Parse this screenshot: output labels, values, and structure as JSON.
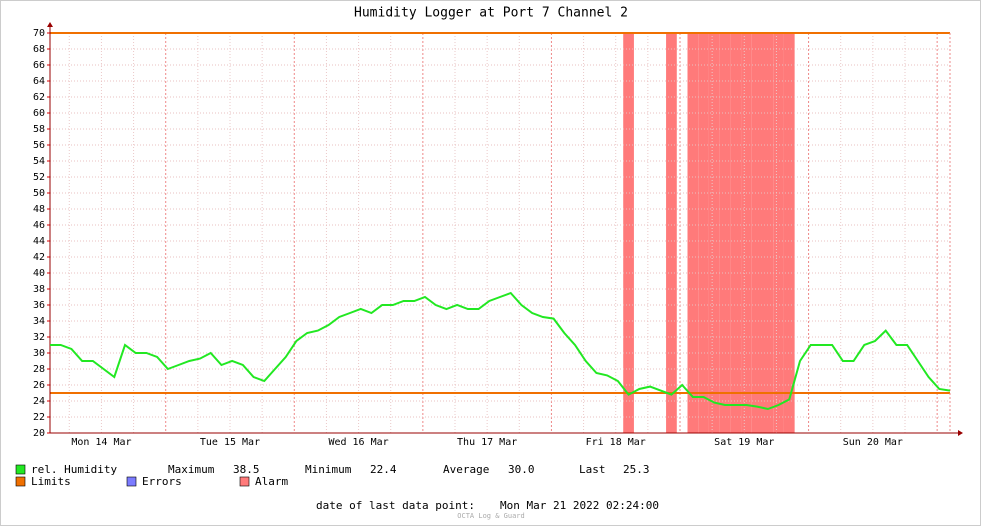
{
  "chart_data": {
    "type": "line",
    "title": "Humidity Logger at Port 7 Channel 2",
    "x_labels": [
      "Mon 14 Mar",
      "Tue 15 Mar",
      "Wed 16 Mar",
      "Thu 17 Mar",
      "Fri 18 Mar",
      "Sat 19 Mar",
      "Sun 20 Mar"
    ],
    "ylim": [
      20,
      70
    ],
    "yticks": [
      20,
      22,
      24,
      26,
      28,
      30,
      32,
      34,
      36,
      38,
      40,
      42,
      44,
      46,
      48,
      50,
      52,
      54,
      56,
      58,
      60,
      62,
      64,
      66,
      68,
      70
    ],
    "grid": true,
    "series": [
      {
        "name": "rel. Humidity",
        "color": "#22e822",
        "values": [
          31,
          31,
          30.5,
          29,
          29,
          28,
          27,
          31,
          30,
          30,
          29.5,
          28,
          28.5,
          29,
          29.3,
          30,
          28.5,
          29,
          28.5,
          27,
          26.5,
          28,
          29.5,
          31.5,
          32.5,
          32.8,
          33.5,
          34.5,
          35,
          35.5,
          35,
          36,
          36,
          36.5,
          36.5,
          37,
          36,
          35.5,
          36,
          35.5,
          35.5,
          36.5,
          37,
          37.5,
          36,
          35,
          34.5,
          34.3,
          32.5,
          31,
          29,
          27.5,
          27.2,
          26.5,
          24.8,
          25.5,
          25.8,
          25.3,
          24.8,
          26,
          24.5,
          24.5,
          23.8,
          23.5,
          23.5,
          23.5,
          23.3,
          23,
          23.5,
          24.2,
          29,
          31,
          31,
          31,
          29,
          29,
          31,
          31.5,
          32.8,
          31,
          31,
          29,
          27,
          25.5,
          25.3
        ]
      }
    ],
    "limits": {
      "name": "Limits",
      "color": "#f07000",
      "values": [
        25,
        70
      ]
    },
    "errors": {
      "name": "Errors",
      "color": "#7b7bff"
    },
    "alarm": {
      "name": "Alarm",
      "color": "#ff7a7a"
    },
    "stats": [
      {
        "label": "Maximum",
        "value": "38.5"
      },
      {
        "label": "Minimum",
        "value": "22.4"
      },
      {
        "label": "Average",
        "value": "30.0"
      },
      {
        "label": "Last",
        "value": "25.3"
      }
    ],
    "footer": {
      "label": "date of last data point:",
      "value": "Mon Mar 21 2022 02:24:00",
      "credit": "OCTA Log & Guard"
    }
  }
}
